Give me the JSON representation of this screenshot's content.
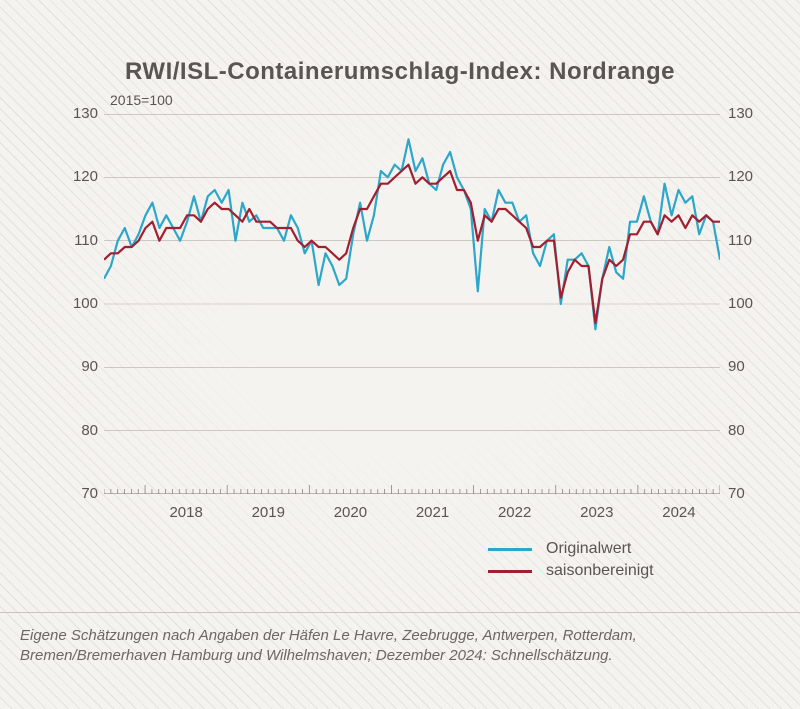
{
  "title": "RWI/ISL-Containerumschlag-Index: Nordrange",
  "subtitle": "2015=100",
  "footnote": "Eigene Schätzungen nach Angaben der Häfen Le Havre, Zeebrugge, Antwerpen, Rotterdam, Bremen/Bremerhaven Hamburg und Wilhelmshaven; Dezember 2024: Schnellschätzung.",
  "legend": {
    "original": "Originalwert",
    "seasonal": "saisonbereinigt"
  },
  "chart": {
    "type": "line",
    "x_start": 2017.5,
    "x_end": 2025.0,
    "ylim": [
      70,
      130
    ],
    "yticks": [
      70,
      80,
      90,
      100,
      110,
      120,
      130
    ],
    "xticks": [
      2018,
      2019,
      2020,
      2021,
      2022,
      2023,
      2024
    ],
    "grid_color": "#b5b0a8",
    "tick_color": "#8a857d",
    "axis_color": "#7a756d",
    "background_color": "#f5f3f0",
    "title_fontsize": 24,
    "label_fontsize": 15,
    "line_width": 2.2,
    "series": [
      {
        "name": "original",
        "color": "#2ca7c9",
        "y": [
          104,
          106,
          110,
          112,
          109,
          111,
          114,
          116,
          112,
          114,
          112,
          110,
          113,
          117,
          113,
          117,
          118,
          116,
          118,
          110,
          116,
          113,
          114,
          112,
          112,
          112,
          110,
          114,
          112,
          108,
          110,
          103,
          108,
          106,
          103,
          104,
          111,
          116,
          110,
          114,
          121,
          120,
          122,
          121,
          126,
          121,
          123,
          119,
          118,
          122,
          124,
          120,
          118,
          115,
          102,
          115,
          113,
          118,
          116,
          116,
          113,
          114,
          108,
          106,
          110,
          111,
          100,
          107,
          107,
          108,
          106,
          96,
          104,
          109,
          105,
          104,
          113,
          113,
          117,
          113,
          111,
          119,
          114,
          118,
          116,
          117,
          111,
          114,
          113,
          107
        ]
      },
      {
        "name": "seasonal",
        "color": "#a11f2f",
        "y": [
          107,
          108,
          108,
          109,
          109,
          110,
          112,
          113,
          110,
          112,
          112,
          112,
          114,
          114,
          113,
          115,
          116,
          115,
          115,
          114,
          113,
          115,
          113,
          113,
          113,
          112,
          112,
          112,
          110,
          109,
          110,
          109,
          109,
          108,
          107,
          108,
          112,
          115,
          115,
          117,
          119,
          119,
          120,
          121,
          122,
          119,
          120,
          119,
          119,
          120,
          121,
          118,
          118,
          116,
          110,
          114,
          113,
          115,
          115,
          114,
          113,
          112,
          109,
          109,
          110,
          110,
          101,
          105,
          107,
          106,
          106,
          97,
          104,
          107,
          106,
          107,
          111,
          111,
          113,
          113,
          111,
          114,
          113,
          114,
          112,
          114,
          113,
          114,
          113,
          113
        ]
      }
    ]
  }
}
